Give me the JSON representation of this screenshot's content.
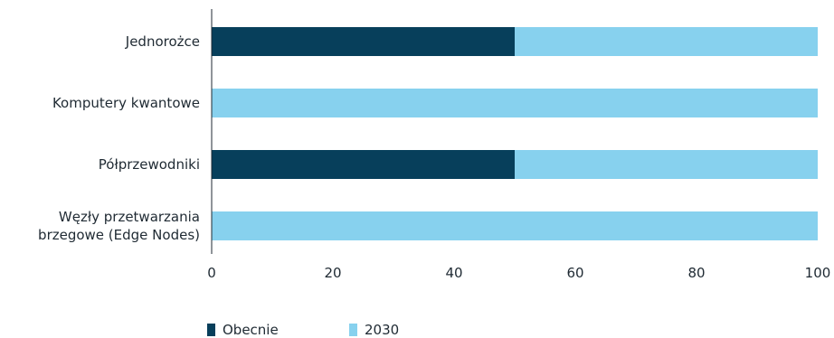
{
  "chart_data": {
    "type": "bar",
    "orientation": "horizontal",
    "stacked": true,
    "categories": [
      [
        "Jednorożce"
      ],
      [
        "Komputery kwantowe"
      ],
      [
        "Półprzewodniki"
      ],
      [
        "Węzły przetwarzania",
        "brzegowe (Edge Nodes)"
      ]
    ],
    "series": [
      {
        "name": "Obecnie",
        "color": "#073f5b",
        "values": [
          50,
          0,
          50,
          0
        ]
      },
      {
        "name": "2030",
        "color": "#87d1ee",
        "values": [
          50,
          100,
          50,
          100
        ]
      }
    ],
    "xlim": [
      0,
      100
    ],
    "xticks": [
      0,
      20,
      40,
      60,
      80,
      100
    ],
    "grid": false,
    "legend_position": "bottom-left",
    "title": "",
    "xlabel": "",
    "ylabel": ""
  }
}
